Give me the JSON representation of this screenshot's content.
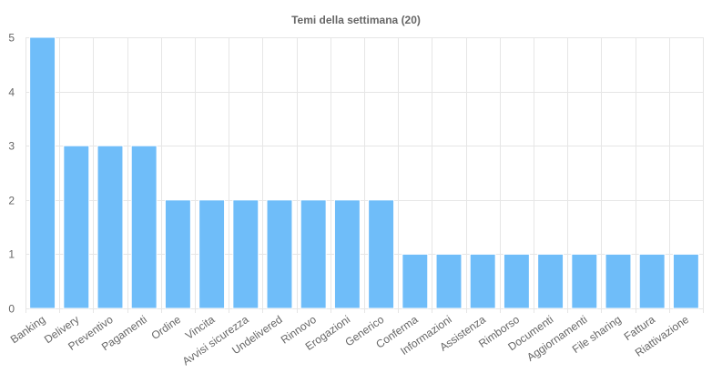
{
  "chart_data": {
    "type": "bar",
    "title": "Temi della settimana (20)",
    "xlabel": "",
    "ylabel": "",
    "ylim": [
      0,
      5
    ],
    "yticks": [
      0,
      1,
      2,
      3,
      4,
      5
    ],
    "grid": true,
    "legend": "none",
    "bar_color": "#6fbdf9",
    "bar_border_color": "#ffffff",
    "categories": [
      "Banking",
      "Delivery",
      "Preventivo",
      "Pagamenti",
      "Ordine",
      "Vincita",
      "Avvisi sicurezza",
      "Undelivered",
      "Rinnovo",
      "Erogazioni",
      "Generico",
      "Conferma",
      "Informazioni",
      "Assistenza",
      "Rimborso",
      "Documenti",
      "Aggiornamenti",
      "File sharing",
      "Fattura",
      "Riattivazione"
    ],
    "values": [
      5,
      3,
      3,
      3,
      2,
      2,
      2,
      2,
      2,
      2,
      2,
      1,
      1,
      1,
      1,
      1,
      1,
      1,
      1,
      1
    ]
  }
}
